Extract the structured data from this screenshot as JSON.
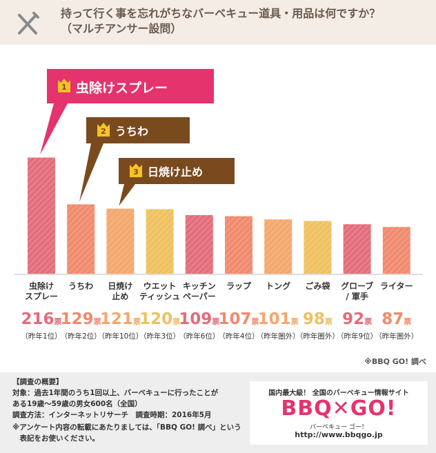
{
  "chart_data": {
    "type": "bar",
    "title": "持って行く事を忘れがちなバーベキュー道具・用品は何ですか？\n（マルチアンサー設問）",
    "categories": [
      "虫除け\nスプレー",
      "うちわ",
      "日焼け\n止め",
      "ウエット\nティッシュ",
      "キッチン\nペーパー",
      "ラップ",
      "トング",
      "ごみ袋",
      "グローブ\n/ 軍手",
      "ライター"
    ],
    "values": [
      216,
      129,
      121,
      120,
      109,
      107,
      101,
      98,
      92,
      87
    ],
    "unit": "票",
    "last_year": [
      "（昨年1位）",
      "（昨年2位）",
      "（昨年10位）",
      "（昨年3位）",
      "（昨年6位）",
      "（昨年4位）",
      "（昨年圏外）",
      "（昨年圏外）",
      "（昨年9位）",
      "（昨年圏外）"
    ],
    "colors": [
      "#e36c7a",
      "#f08a6c",
      "#f4a76c",
      "#efc05f",
      "#e36c7a",
      "#f08a6c",
      "#f4a76c",
      "#efc05f",
      "#e36c7a",
      "#f08a6c"
    ],
    "ylim": [
      0,
      250
    ],
    "ranking": [
      {
        "rank": 1,
        "label": "虫除けスプレー"
      },
      {
        "rank": 2,
        "label": "うちわ"
      },
      {
        "rank": 3,
        "label": "日焼け止め"
      }
    ],
    "source": "※BBQ GO! 調べ"
  },
  "footer": {
    "heading": "【調査の概要】",
    "lines": [
      "対象：過去1年間のうち1回以上、バーベキューに行ったことが\nある19歳～59歳の男女600名（全国）",
      "調査方法：インターネットリサーチ　調査時期：2016年5月",
      "※アンケート内容の転載にあたりましては、「BBQ GO! 調べ」という\n　表記をお使いください。"
    ],
    "tagline": "国内最大級！ 全国のバーベキュー情報サイト",
    "logo": "BBQ✕GO!",
    "logo_reading": "バーベキュー ゴー！",
    "url": "http://www.bbqgo.jp"
  }
}
